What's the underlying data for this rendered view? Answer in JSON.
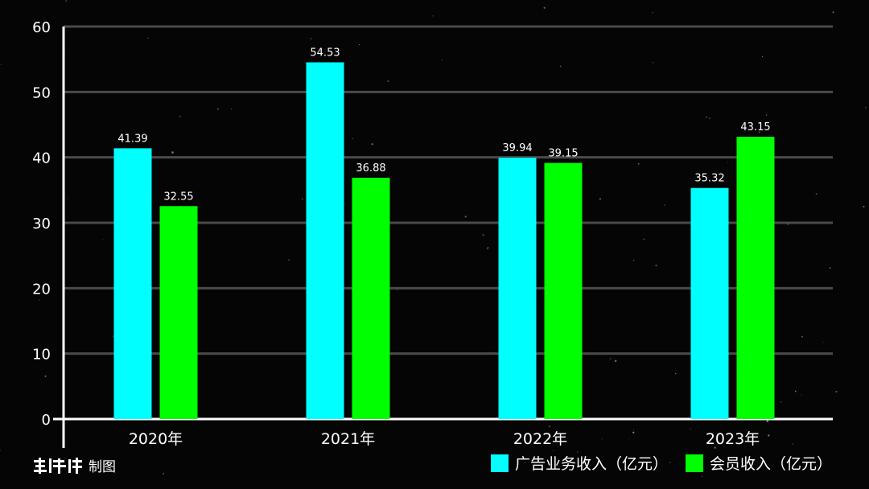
{
  "chart_data": {
    "type": "bar",
    "categories": [
      "2020年",
      "2021年",
      "2022年",
      "2023年"
    ],
    "series": [
      {
        "name": "广告业务收入（亿元）",
        "color": "#00ffff",
        "values": [
          41.39,
          54.53,
          39.94,
          35.32
        ]
      },
      {
        "name": "会员收入（亿元）",
        "color": "#00ff00",
        "values": [
          32.55,
          36.88,
          39.15,
          43.15
        ]
      }
    ],
    "yticks": [
      "0",
      "10",
      "20",
      "30",
      "40",
      "50",
      "60"
    ],
    "ylim": [
      0,
      60
    ],
    "grid": true,
    "legend_position": "bottom-right",
    "bar_labels": true
  },
  "credit": {
    "logo_name": "chaping-logo",
    "text": "制图"
  }
}
